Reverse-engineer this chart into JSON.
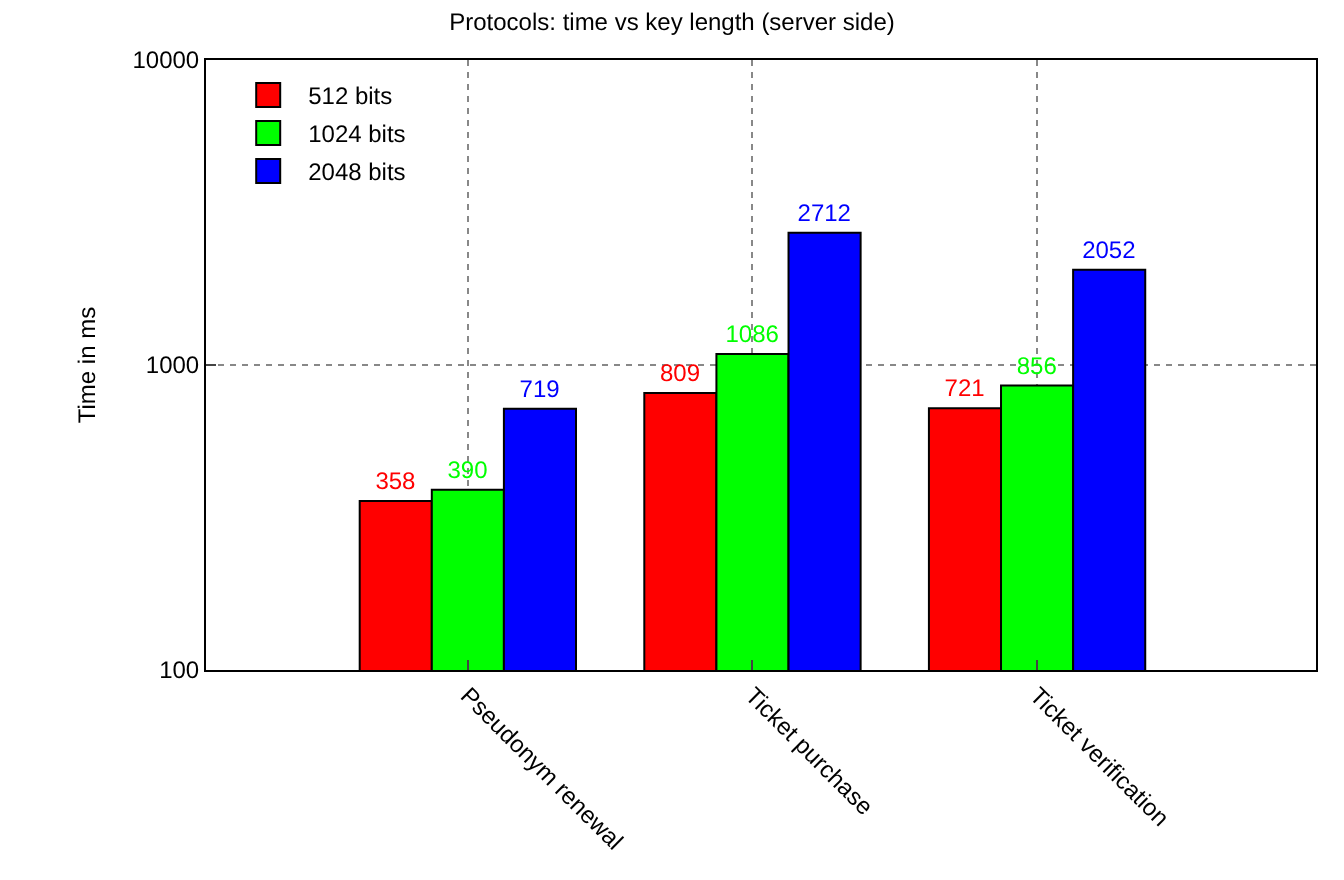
{
  "chart_data": {
    "type": "bar",
    "title": "Protocols: time vs key length (server side)",
    "ylabel": "Time in ms",
    "categories": [
      "Pseudonym renewal",
      "Ticket purchase",
      "Ticket verification"
    ],
    "series": [
      {
        "name": "512 bits",
        "color": "#ff0000",
        "values": [
          358,
          809,
          721
        ]
      },
      {
        "name": "1024 bits",
        "color": "#00ff00",
        "values": [
          390,
          1086,
          856
        ]
      },
      {
        "name": "2048 bits",
        "color": "#0000ff",
        "values": [
          719,
          2712,
          2052
        ]
      }
    ],
    "log": "y",
    "ylim": [
      100,
      10000
    ],
    "yticks": [
      100,
      1000,
      10000
    ],
    "grid": true,
    "legend": "top left",
    "data_labels": true
  }
}
